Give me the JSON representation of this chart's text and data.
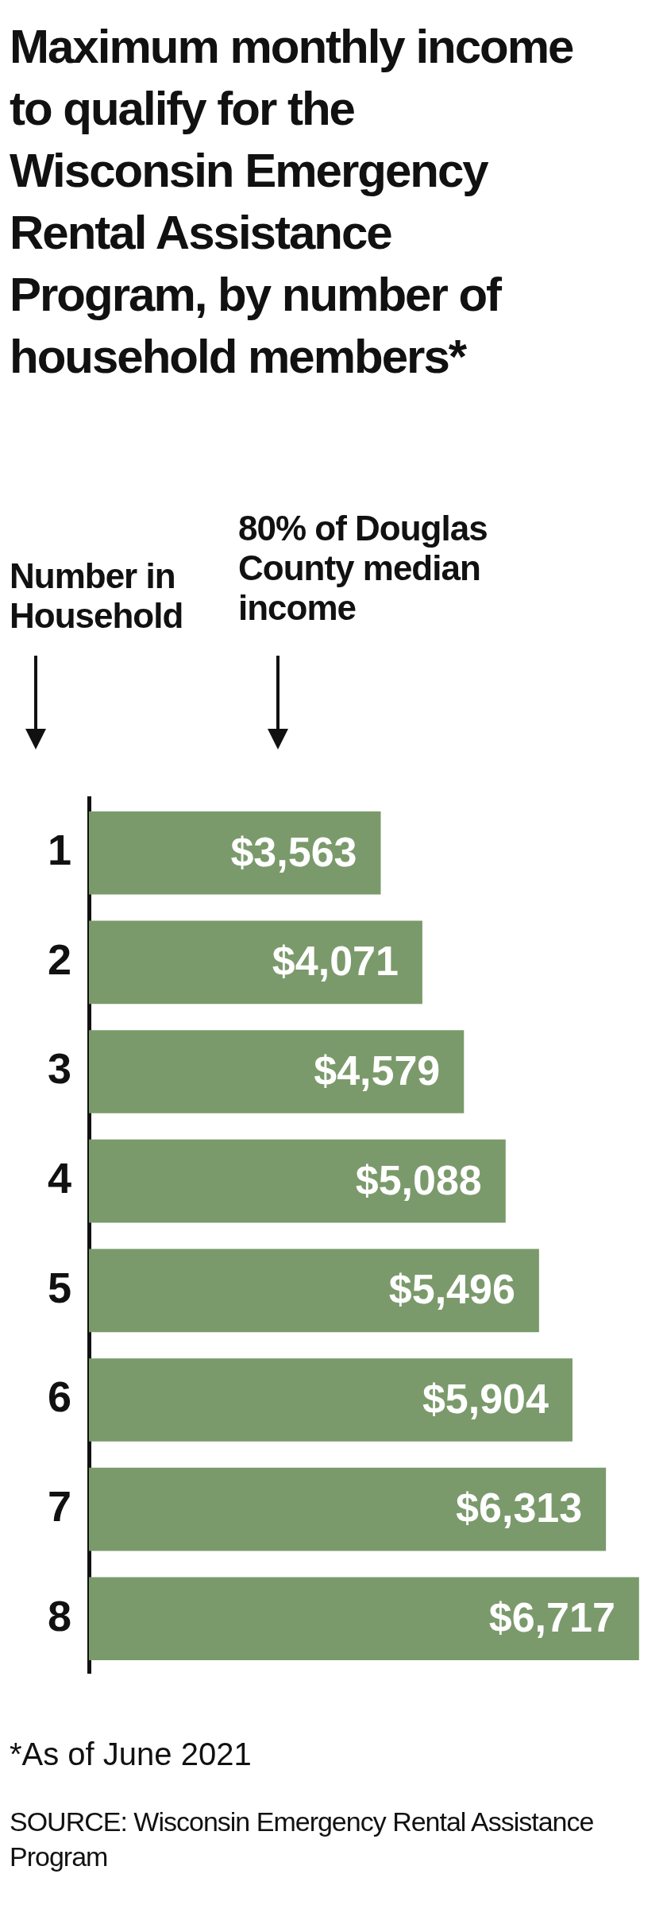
{
  "chart_data": {
    "type": "bar",
    "orientation": "horizontal",
    "title": "Maximum monthly income to qualify for the Wisconsin Emergency Rental Assistance Program, by number of household members*",
    "ylabel": "Number in Household",
    "xlabel": "80% of Douglas County median income",
    "categories": [
      "1",
      "2",
      "3",
      "4",
      "5",
      "6",
      "7",
      "8"
    ],
    "values": [
      3563,
      4071,
      4579,
      5088,
      5496,
      5904,
      6313,
      6717
    ],
    "value_labels": [
      "$3,563",
      "$4,071",
      "$4,579",
      "$5,088",
      "$5,496",
      "$5,904",
      "$6,313",
      "$6,717"
    ],
    "color": "#7b9a6b",
    "tick_labels": "y",
    "grid": false,
    "legend": false,
    "annotations": [
      "*As of June 2021",
      "SOURCE: Wisconsin Emergency Rental Assistance Program"
    ]
  }
}
